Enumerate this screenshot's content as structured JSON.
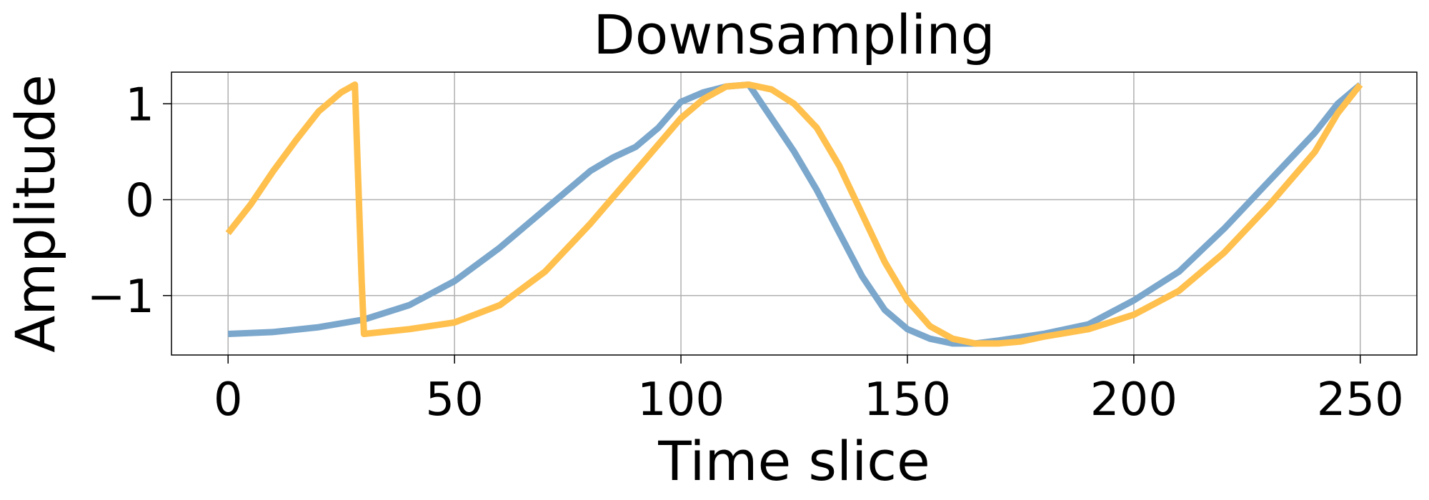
{
  "chart_data": {
    "type": "line",
    "title": "Downsampling",
    "xlabel": "Time slice",
    "ylabel": "Amplitude",
    "xlim": [
      -12.5,
      262.5
    ],
    "ylim": [
      -1.62,
      1.33
    ],
    "grid": true,
    "legend": "none",
    "x_ticks": [
      0,
      50,
      100,
      150,
      200,
      250
    ],
    "x_tick_labels": [
      "0",
      "50",
      "100",
      "150",
      "200",
      "250"
    ],
    "y_ticks": [
      -1,
      0,
      1
    ],
    "y_tick_labels": [
      "−1",
      "0",
      "1"
    ],
    "series": [
      {
        "color": "#7BA7CC",
        "x": [
          0,
          10,
          20,
          30,
          40,
          50,
          60,
          70,
          80,
          85,
          90,
          95,
          100,
          105,
          110,
          115,
          120,
          125,
          130,
          135,
          140,
          145,
          150,
          155,
          160,
          165,
          170,
          180,
          190,
          200,
          210,
          220,
          230,
          240,
          245,
          250
        ],
        "y": [
          -1.4,
          -1.38,
          -1.33,
          -1.25,
          -1.1,
          -0.85,
          -0.5,
          -0.1,
          0.3,
          0.44,
          0.55,
          0.75,
          1.02,
          1.12,
          1.18,
          1.2,
          0.85,
          0.5,
          0.1,
          -0.35,
          -0.8,
          -1.15,
          -1.35,
          -1.45,
          -1.5,
          -1.5,
          -1.47,
          -1.4,
          -1.3,
          -1.05,
          -0.75,
          -0.3,
          0.2,
          0.7,
          1.0,
          1.2
        ]
      },
      {
        "color": "#FFC04D",
        "x": [
          0,
          5,
          10,
          15,
          20,
          25,
          28,
          29.5,
          30,
          40,
          50,
          60,
          70,
          80,
          90,
          100,
          105,
          110,
          115,
          120,
          125,
          130,
          135,
          140,
          145,
          150,
          155,
          160,
          165,
          170,
          175,
          180,
          190,
          200,
          210,
          220,
          230,
          240,
          245,
          250
        ],
        "y": [
          -0.35,
          -0.05,
          0.3,
          0.62,
          0.92,
          1.12,
          1.2,
          -0.85,
          -1.4,
          -1.35,
          -1.28,
          -1.1,
          -0.75,
          -0.25,
          0.3,
          0.85,
          1.05,
          1.18,
          1.2,
          1.15,
          1.0,
          0.75,
          0.35,
          -0.15,
          -0.65,
          -1.05,
          -1.32,
          -1.45,
          -1.5,
          -1.5,
          -1.48,
          -1.43,
          -1.35,
          -1.2,
          -0.95,
          -0.55,
          -0.05,
          0.5,
          0.9,
          1.2
        ]
      }
    ]
  }
}
